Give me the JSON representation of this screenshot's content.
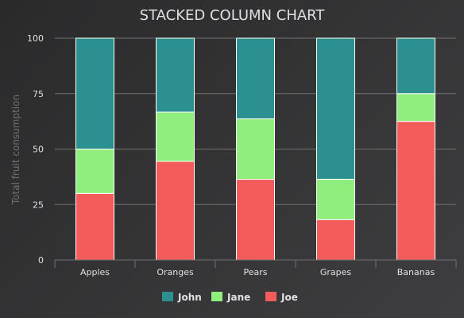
{
  "chart_data": {
    "type": "bar",
    "stacked": true,
    "percent": true,
    "title": "STACKED COLUMN CHART",
    "xlabel": "",
    "ylabel": "Total fruit consumption",
    "categories": [
      "Apples",
      "Oranges",
      "Pears",
      "Grapes",
      "Bananas"
    ],
    "ylim": [
      0,
      100
    ],
    "yticks": [
      0,
      25,
      50,
      75,
      100
    ],
    "grid": true,
    "legend_position": "bottom-center",
    "series": [
      {
        "name": "John",
        "color": "#2b908f",
        "values": [
          50,
          33.3,
          36.4,
          63.6,
          25
        ]
      },
      {
        "name": "Jane",
        "color": "#90ee7e",
        "values": [
          20,
          22.2,
          27.3,
          18.2,
          12.5
        ]
      },
      {
        "name": "Joe",
        "color": "#f45b5b",
        "values": [
          30,
          44.4,
          36.4,
          18.2,
          62.5
        ]
      }
    ]
  }
}
